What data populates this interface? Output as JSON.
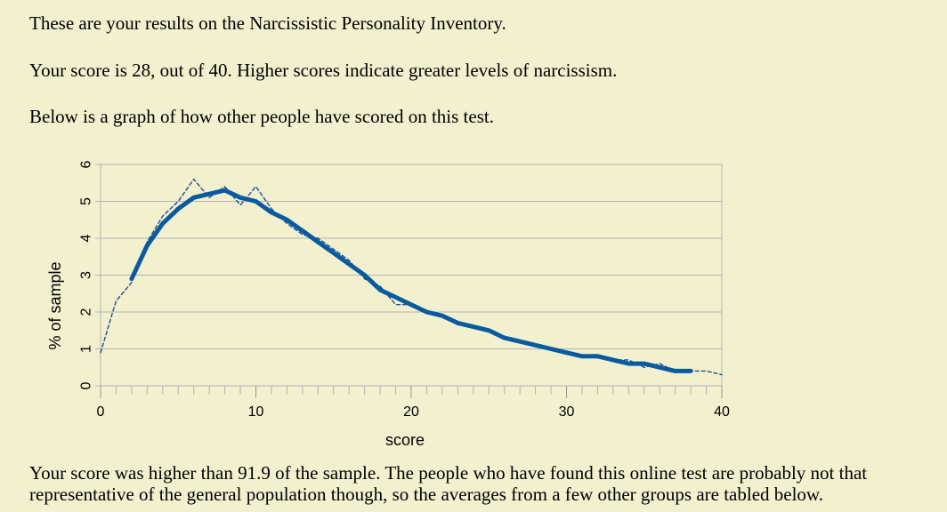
{
  "text": {
    "intro": "These are your results on the Narcissistic Personality Inventory.",
    "score_line": "Your score is 28, out of 40. Higher scores indicate greater levels of narcissism.",
    "graph_intro": "Below is a graph of how other people have scored on this test.",
    "comparison": "Your score was higher than 91.9 of the sample. The people who have found this online test are probably not that representative of the general population though, so the averages from a few other groups are tabled below."
  },
  "chart_data": {
    "type": "line",
    "title": "",
    "xlabel": "score",
    "ylabel": "% of sample",
    "xlim": [
      0,
      40
    ],
    "ylim": [
      0,
      6
    ],
    "xticks": [
      0,
      10,
      20,
      30,
      40
    ],
    "yticks": [
      0,
      1,
      2,
      3,
      4,
      5,
      6
    ],
    "grid": true,
    "series": [
      {
        "style": "dashed-thin",
        "color": "#1f4e8c",
        "x": [
          0,
          1,
          2,
          3,
          4,
          5,
          6,
          7,
          8,
          9,
          10,
          11,
          12,
          13,
          14,
          15,
          16,
          17,
          18,
          19,
          20,
          21,
          22,
          23,
          24,
          25,
          26,
          27,
          28,
          29,
          30,
          31,
          32,
          33,
          34,
          35,
          36,
          37,
          38,
          39,
          40
        ],
        "y": [
          0.9,
          2.3,
          2.8,
          3.9,
          4.6,
          5.0,
          5.6,
          5.1,
          5.4,
          4.9,
          5.4,
          4.8,
          4.4,
          4.1,
          4.0,
          3.7,
          3.4,
          2.9,
          2.7,
          2.2,
          2.2,
          2.0,
          1.9,
          1.7,
          1.6,
          1.5,
          1.3,
          1.2,
          1.1,
          1.0,
          0.9,
          0.8,
          0.8,
          0.7,
          0.7,
          0.5,
          0.6,
          0.4,
          0.4,
          0.4,
          0.3
        ]
      },
      {
        "style": "solid-thick",
        "color": "#0a5aa0",
        "x": [
          2,
          3,
          4,
          5,
          6,
          7,
          8,
          9,
          10,
          11,
          12,
          13,
          14,
          15,
          16,
          17,
          18,
          19,
          20,
          21,
          22,
          23,
          24,
          25,
          26,
          27,
          28,
          29,
          30,
          31,
          32,
          33,
          34,
          35,
          36,
          37,
          38
        ],
        "y": [
          2.9,
          3.8,
          4.4,
          4.8,
          5.1,
          5.2,
          5.3,
          5.1,
          5.0,
          4.7,
          4.5,
          4.2,
          3.9,
          3.6,
          3.3,
          3.0,
          2.6,
          2.4,
          2.2,
          2.0,
          1.9,
          1.7,
          1.6,
          1.5,
          1.3,
          1.2,
          1.1,
          1.0,
          0.9,
          0.8,
          0.8,
          0.7,
          0.6,
          0.6,
          0.5,
          0.4,
          0.4
        ]
      }
    ]
  }
}
